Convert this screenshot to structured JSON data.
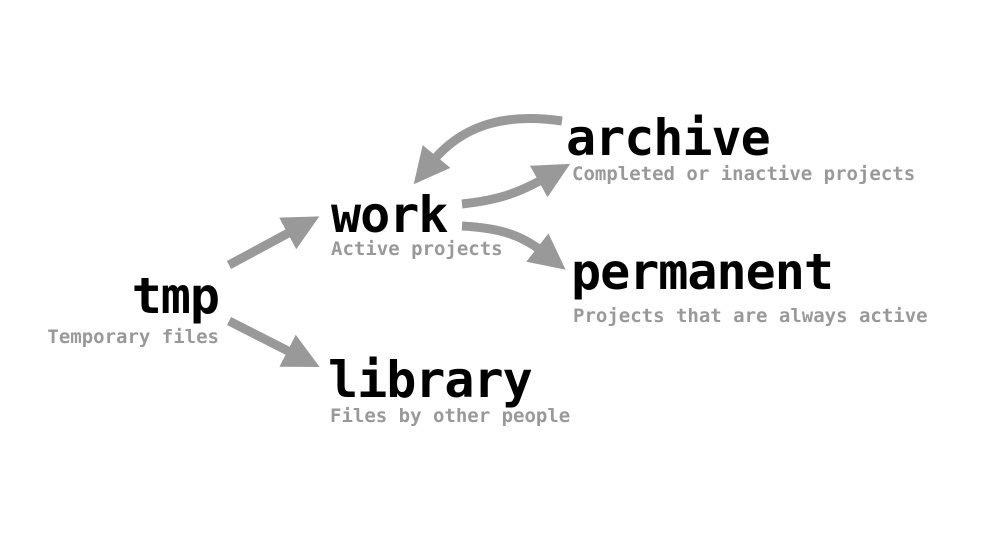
{
  "colors": {
    "title": "#000000",
    "subtitle": "#999999",
    "arrow": "#999999",
    "background": "#ffffff"
  },
  "nodes": {
    "tmp": {
      "title": "tmp",
      "subtitle": "Temporary files"
    },
    "work": {
      "title": "work",
      "subtitle": "Active projects"
    },
    "library": {
      "title": "library",
      "subtitle": "Files by other people"
    },
    "archive": {
      "title": "archive",
      "subtitle": "Completed or inactive projects"
    },
    "permanent": {
      "title": "permanent",
      "subtitle": "Projects that are always active"
    }
  },
  "edges": [
    {
      "from": "tmp",
      "to": "work"
    },
    {
      "from": "tmp",
      "to": "library"
    },
    {
      "from": "work",
      "to": "archive"
    },
    {
      "from": "work",
      "to": "permanent"
    },
    {
      "from": "archive",
      "to": "work"
    }
  ]
}
